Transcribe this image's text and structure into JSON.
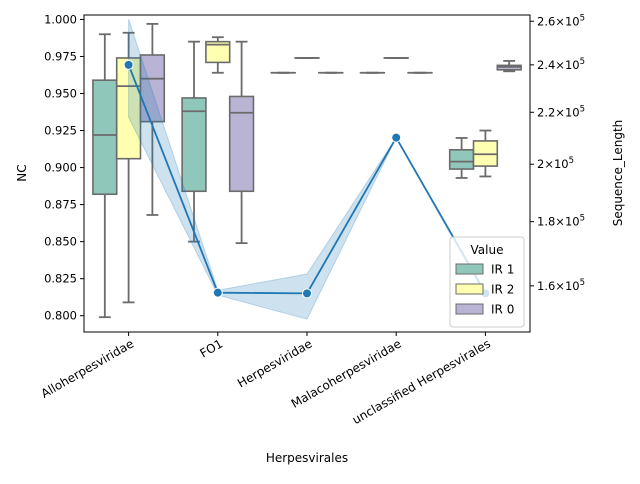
{
  "chart_data": {
    "type": "box+line",
    "xlabel": "Herpesvirales",
    "ylabel_left": "NC",
    "ylabel_right": "Sequence_Length",
    "categories": [
      "Alloherpesviridae",
      "FO1",
      "Herpesviridae",
      "Malacoherpesviridae",
      "unclassified Herpesvirales"
    ],
    "ylim_left": [
      0.789,
      1.003
    ],
    "yticks_left": [
      "0.800",
      "0.825",
      "0.850",
      "0.875",
      "0.900",
      "0.925",
      "0.950",
      "0.975",
      "1.000"
    ],
    "yticks_left_values": [
      0.8,
      0.825,
      0.85,
      0.875,
      0.9,
      0.925,
      0.95,
      0.975,
      1.0
    ],
    "right_axis": {
      "scale": "log",
      "ylim": [
        147000,
        263000
      ],
      "ticks": [
        160000,
        180000,
        200000,
        220000,
        240000,
        260000
      ],
      "tick_mantissa": [
        "1.6",
        "1.8",
        "2",
        "2.2",
        "2.4",
        "2.6"
      ],
      "tick_base": "10",
      "tick_exp": "5",
      "tick_times": "×"
    },
    "legend": {
      "title": "Value",
      "placement": "lower-right",
      "entries": [
        {
          "label": "IR 1",
          "color": "#8fc8bb"
        },
        {
          "label": "IR 2",
          "color": "#ffffb2"
        },
        {
          "label": "IR 0",
          "color": "#b9b4d3"
        }
      ]
    },
    "box_series": [
      {
        "name": "IR 1",
        "color": "#8fc8bb",
        "boxes": [
          {
            "category": "Alloherpesviridae",
            "min": 0.799,
            "q1": 0.882,
            "median": 0.922,
            "q3": 0.959,
            "max": 0.99
          },
          {
            "category": "FO1",
            "min": 0.85,
            "q1": 0.884,
            "median": 0.938,
            "q3": 0.947,
            "max": 0.985
          },
          {
            "category": "Herpesviridae",
            "min": 0.964,
            "q1": 0.964,
            "median": 0.964,
            "q3": 0.964,
            "max": 0.964
          },
          {
            "category": "Malacoherpesviridae",
            "min": 0.964,
            "q1": 0.964,
            "median": 0.964,
            "q3": 0.964,
            "max": 0.964
          },
          {
            "category": "unclassified Herpesvirales",
            "min": 0.893,
            "q1": 0.899,
            "median": 0.904,
            "q3": 0.912,
            "max": 0.92
          }
        ]
      },
      {
        "name": "IR 2",
        "color": "#ffffb2",
        "boxes": [
          {
            "category": "Alloherpesviridae",
            "min": 0.809,
            "q1": 0.906,
            "median": 0.955,
            "q3": 0.974,
            "max": 0.991
          },
          {
            "category": "FO1",
            "min": 0.964,
            "q1": 0.971,
            "median": 0.983,
            "q3": 0.985,
            "max": 0.988
          },
          {
            "category": "Herpesviridae",
            "min": 0.974,
            "q1": 0.974,
            "median": 0.974,
            "q3": 0.974,
            "max": 0.974
          },
          {
            "category": "Malacoherpesviridae",
            "min": 0.974,
            "q1": 0.974,
            "median": 0.974,
            "q3": 0.974,
            "max": 0.974
          },
          {
            "category": "unclassified Herpesvirales",
            "min": 0.894,
            "q1": 0.901,
            "median": 0.909,
            "q3": 0.918,
            "max": 0.925
          }
        ]
      },
      {
        "name": "IR 0",
        "color": "#b9b4d3",
        "boxes": [
          {
            "category": "Alloherpesviridae",
            "min": 0.868,
            "q1": 0.931,
            "median": 0.96,
            "q3": 0.976,
            "max": 0.997
          },
          {
            "category": "FO1",
            "min": 0.849,
            "q1": 0.884,
            "median": 0.937,
            "q3": 0.948,
            "max": 0.985
          },
          {
            "category": "Herpesviridae",
            "min": 0.964,
            "q1": 0.964,
            "median": 0.964,
            "q3": 0.964,
            "max": 0.964
          },
          {
            "category": "Malacoherpesviridae",
            "min": 0.964,
            "q1": 0.964,
            "median": 0.964,
            "q3": 0.964,
            "max": 0.964
          },
          {
            "category": "unclassified Herpesvirales",
            "min": 0.965,
            "q1": 0.966,
            "median": 0.968,
            "q3": 0.969,
            "max": 0.972
          }
        ]
      }
    ],
    "line_series": {
      "name": "Sequence_Length",
      "color": "#1f77b4",
      "values": [
        240000,
        158000,
        157800,
        210000,
        157800
      ],
      "ci_low": [
        218000,
        157300,
        150500,
        210000,
        157300
      ],
      "ci_high": [
        261000,
        158700,
        163500,
        210000,
        158300
      ]
    }
  }
}
